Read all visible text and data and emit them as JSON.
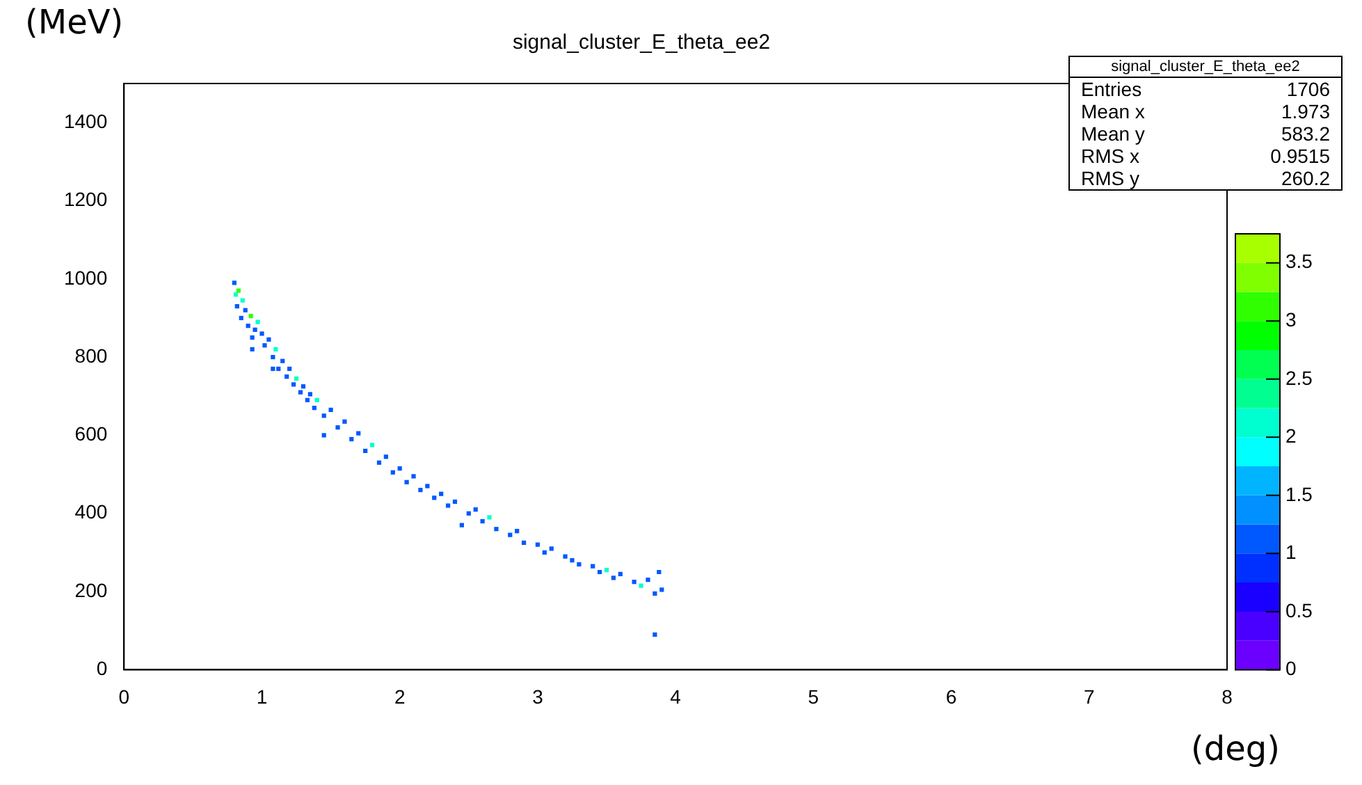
{
  "chart_data": {
    "type": "scatter",
    "title": "signal_cluster_E_theta_ee2",
    "xlabel": "(deg)",
    "ylabel": "(MeV)",
    "annotations": [
      "signal_cluster_E_theta_ee2",
      "Entries",
      "1706",
      "Mean x",
      "1.973",
      "Mean y",
      "583.2",
      "RMS x",
      "0.9515",
      "RMS y",
      "260.2"
    ],
    "x": [
      0.8,
      0.81,
      0.82,
      0.83,
      0.85,
      0.86,
      0.88,
      0.9,
      0.92,
      0.93,
      0.95,
      0.97,
      1.0,
      1.02,
      1.05,
      1.08,
      1.1,
      1.12,
      1.15,
      1.18,
      1.2,
      1.23,
      1.25,
      1.28,
      1.3,
      1.33,
      1.35,
      1.38,
      1.4,
      1.45,
      1.5,
      1.55,
      1.6,
      1.65,
      1.7,
      1.75,
      1.8,
      1.85,
      1.9,
      1.95,
      2.0,
      2.05,
      2.1,
      2.15,
      2.2,
      2.25,
      2.3,
      2.35,
      2.4,
      2.5,
      2.55,
      2.6,
      2.65,
      2.7,
      2.8,
      2.85,
      2.9,
      3.0,
      3.05,
      3.1,
      3.2,
      3.25,
      3.3,
      3.4,
      3.45,
      3.5,
      3.55,
      3.6,
      3.7,
      3.75,
      3.8,
      3.85,
      3.9,
      3.88,
      3.85,
      0.93,
      1.08,
      1.45,
      2.45
    ],
    "values": [
      990,
      960,
      930,
      970,
      900,
      945,
      920,
      880,
      905,
      850,
      870,
      890,
      860,
      830,
      845,
      800,
      820,
      770,
      790,
      750,
      770,
      730,
      745,
      710,
      725,
      690,
      705,
      670,
      690,
      650,
      665,
      620,
      635,
      590,
      605,
      560,
      575,
      530,
      545,
      505,
      515,
      480,
      495,
      460,
      470,
      440,
      450,
      420,
      430,
      400,
      410,
      380,
      390,
      360,
      345,
      355,
      325,
      320,
      300,
      310,
      290,
      280,
      270,
      265,
      250,
      255,
      235,
      245,
      225,
      215,
      230,
      195,
      205,
      250,
      90,
      820,
      770,
      600,
      370
    ],
    "cvalues": [
      1,
      2,
      1,
      3,
      1,
      2,
      1,
      1,
      3,
      1,
      1,
      2,
      1,
      1,
      1,
      1,
      2,
      1,
      1,
      1,
      1,
      1,
      2,
      1,
      1,
      1,
      1,
      1,
      2,
      1,
      1,
      1,
      1,
      1,
      1,
      1,
      2,
      1,
      1,
      1,
      1,
      1,
      1,
      1,
      1,
      1,
      1,
      1,
      1,
      1,
      1,
      1,
      2,
      1,
      1,
      1,
      1,
      1,
      1,
      1,
      1,
      1,
      1,
      1,
      1,
      2,
      1,
      1,
      1,
      2,
      1,
      1,
      1,
      1,
      1,
      1,
      1,
      1,
      1
    ],
    "clim": [
      0,
      3.75
    ],
    "cticks": [
      0,
      0.5,
      1,
      1.5,
      2,
      2.5,
      3,
      3.5
    ],
    "xlim": [
      0,
      8
    ],
    "xticks": [
      0,
      1,
      2,
      3,
      4,
      5,
      6,
      7,
      8
    ],
    "ylim": [
      0,
      1500
    ],
    "yticks": [
      0,
      200,
      400,
      600,
      800,
      1000,
      1200,
      1400
    ],
    "marker": "square",
    "grid": false,
    "legend": false
  }
}
